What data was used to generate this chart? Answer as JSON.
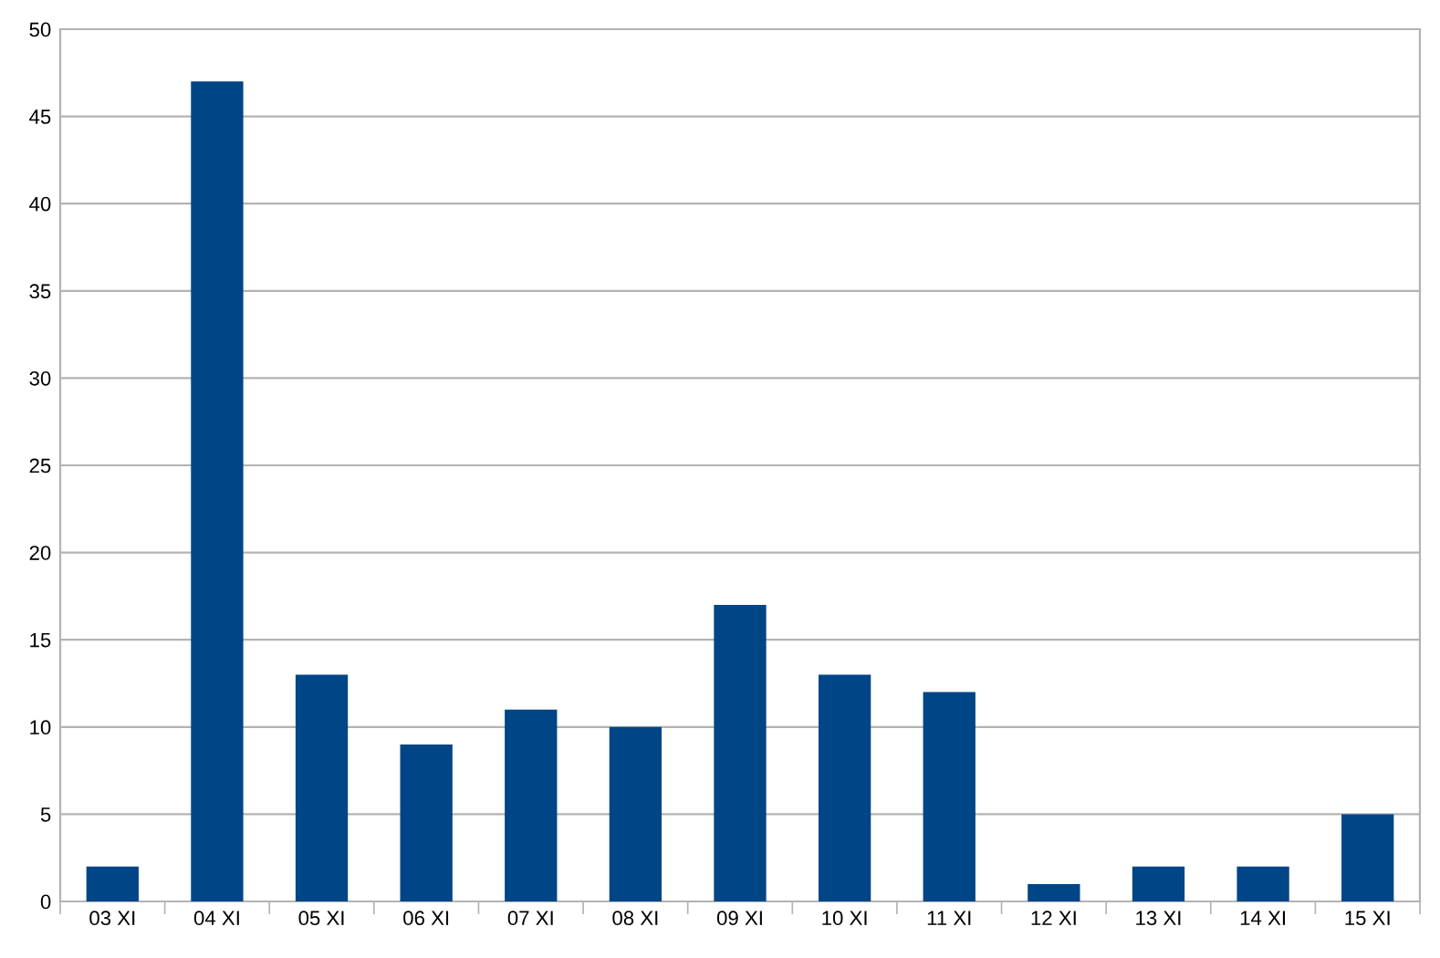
{
  "chart_data": {
    "type": "bar",
    "categories": [
      "03 XI",
      "04 XI",
      "05 XI",
      "06 XI",
      "07 XI",
      "08 XI",
      "09 XI",
      "10 XI",
      "11 XI",
      "12 XI",
      "13 XI",
      "14 XI",
      "15 XI"
    ],
    "values": [
      2,
      47,
      13,
      9,
      11,
      10,
      17,
      13,
      12,
      1,
      2,
      2,
      5
    ],
    "color": "#004586",
    "ylim": [
      0,
      50
    ],
    "yticks": [
      0,
      5,
      10,
      15,
      20,
      25,
      30,
      35,
      40,
      45,
      50
    ],
    "grid": "y",
    "legend": false
  }
}
